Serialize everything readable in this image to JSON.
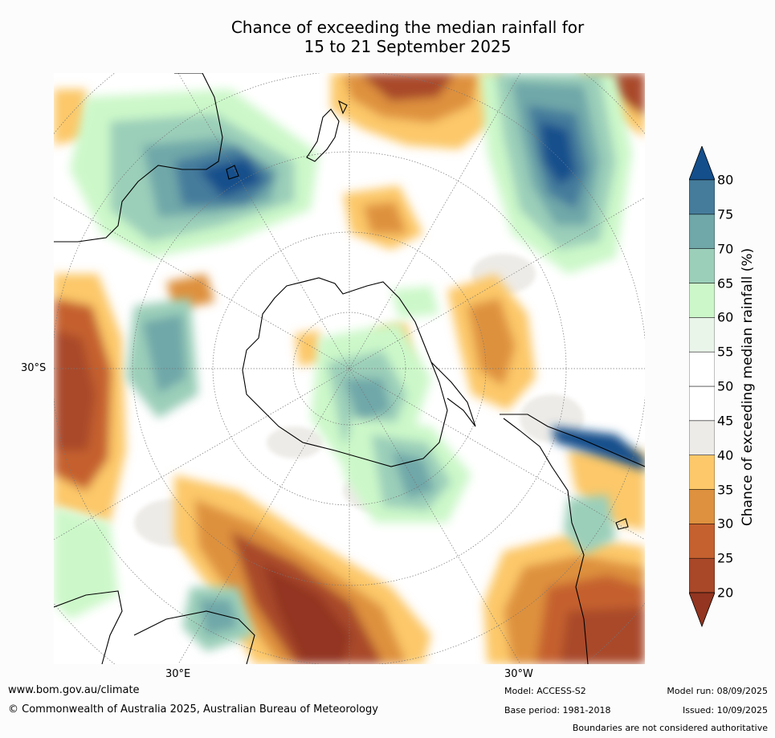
{
  "title": {
    "line1": "Chance of exceeding the median rainfall for",
    "line2": "15 to 21 September 2025"
  },
  "map": {
    "projection": "south polar stereographic",
    "axis_labels": {
      "lat_30s": "30°S",
      "lon_30e": "30°E",
      "lon_30w": "30°W"
    }
  },
  "legend": {
    "title": "Chance of exceeding median rainfall (%)",
    "ticks": [
      "20",
      "25",
      "30",
      "35",
      "40",
      "45",
      "50",
      "55",
      "60",
      "65",
      "70",
      "75",
      "80"
    ],
    "colors": [
      "#933520",
      "#a94829",
      "#c5612f",
      "#de913e",
      "#fcc869",
      "#edebe7",
      "#ffffff",
      "#ffffff",
      "#eaf5ea",
      "#ccf8c9",
      "#9bcfb9",
      "#70a7a9",
      "#457c9b",
      "#144f8c"
    ],
    "range": [
      20,
      80
    ]
  },
  "footer": {
    "url": "www.bom.gov.au/climate",
    "copyright": "© Commonwealth of Australia 2025, Australian Bureau of Meteorology",
    "model": "Model: ACCESS-S2",
    "base_period": "Base period: 1981-2018",
    "model_run": "Model run: 08/09/2025",
    "issued": "Issued: 10/09/2025",
    "disclaimer": "Boundaries are not considered authoritative"
  }
}
